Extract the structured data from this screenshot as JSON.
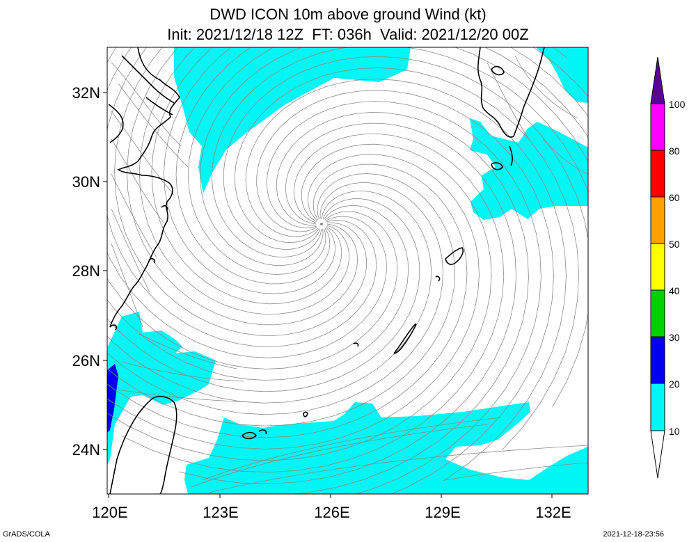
{
  "header": {
    "title_line1": "DWD ICON 10m above ground Wind (kt)",
    "title_line2": "Init: 2021/12/18 12Z  FT: 036h  Valid: 2021/12/20 00Z"
  },
  "map": {
    "lat_labels": [
      "32N",
      "30N",
      "28N",
      "26N",
      "24N"
    ],
    "lon_labels": [
      "120E",
      "123E",
      "126E",
      "129E",
      "132E"
    ],
    "low_center_label": ""
  },
  "colorbar": {
    "levels": [
      {
        "label": "10",
        "color": "#00f5f5"
      },
      {
        "label": "20",
        "color": "#0000f0"
      },
      {
        "label": "30",
        "color": "#00d200"
      },
      {
        "label": "40",
        "color": "#ffff00"
      },
      {
        "label": "50",
        "color": "#ffa000"
      },
      {
        "label": "60",
        "color": "#ff0000"
      },
      {
        "label": "80",
        "color": "#ff00ff"
      },
      {
        "label": "100",
        "color": "#5a0096"
      }
    ]
  },
  "colors": {
    "wind_10_20": "#00f5f5",
    "wind_20_30": "#0000f0",
    "streamline": "#8a8a8a",
    "coastline": "#000000"
  },
  "footer": {
    "left": "GrADS/COLA",
    "right": "2021-12-18-23:56"
  }
}
